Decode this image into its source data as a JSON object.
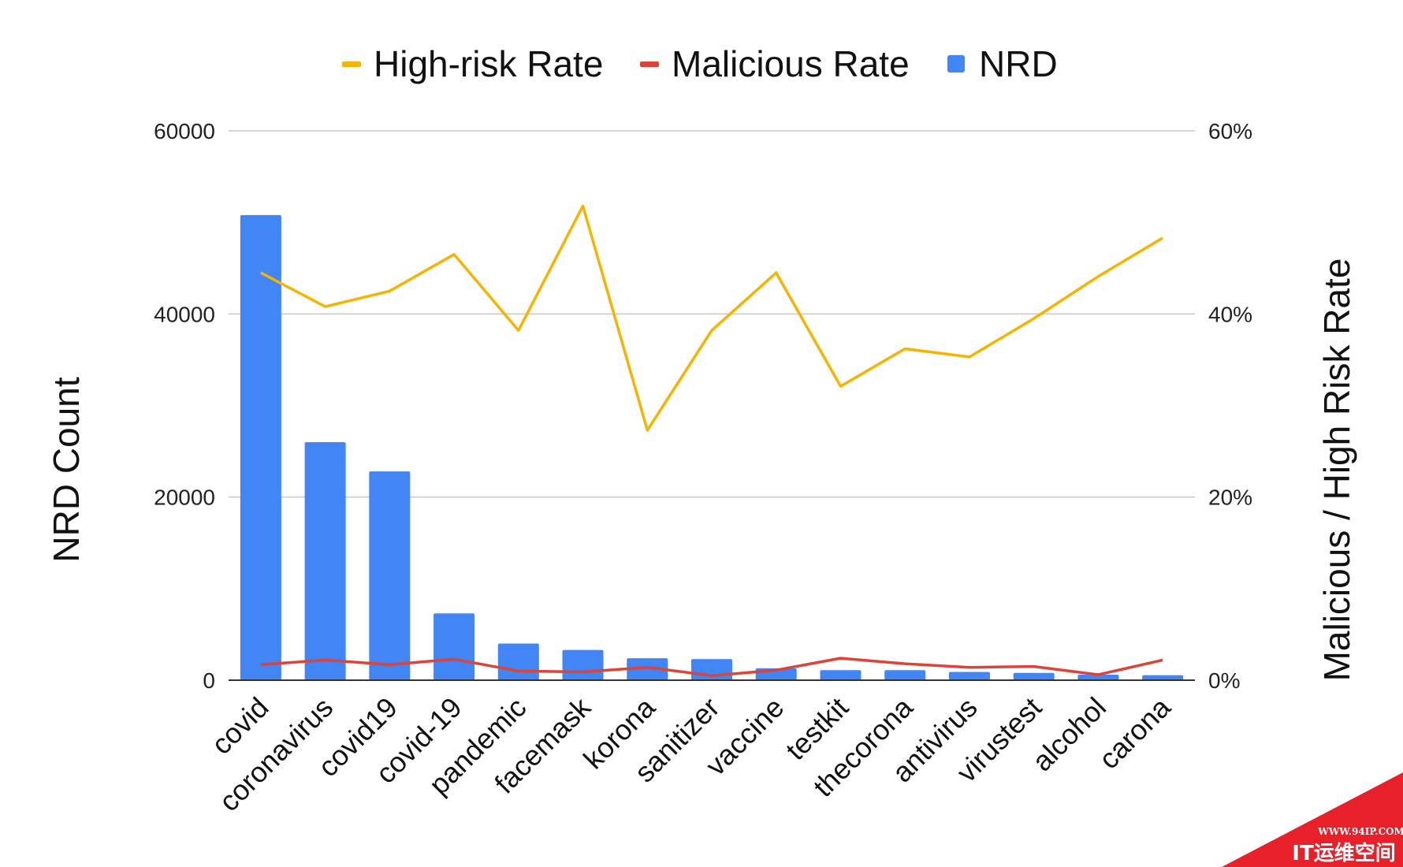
{
  "chart_data": {
    "type": "bar",
    "categories": [
      "covid",
      "coronavirus",
      "covid19",
      "covid-19",
      "pandemic",
      "facemask",
      "korona",
      "sanitizer",
      "vaccine",
      "testkit",
      "thecorona",
      "antivirus",
      "virustest",
      "alcohol",
      "carona"
    ],
    "series": [
      {
        "name": "NRD",
        "type": "bar",
        "axis": "left",
        "color": "#4285F4",
        "values": [
          50800,
          26000,
          22800,
          7300,
          4000,
          3300,
          2400,
          2300,
          1300,
          1100,
          1100,
          900,
          800,
          600,
          550
        ]
      },
      {
        "name": "High-risk Rate",
        "type": "line",
        "axis": "right",
        "color": "#F4B400",
        "values": [
          44.5,
          40.8,
          42.5,
          46.5,
          38.2,
          51.8,
          27.3,
          38.2,
          44.5,
          32.1,
          36.2,
          35.3,
          39.5,
          44.1,
          48.3
        ]
      },
      {
        "name": "Malicious Rate",
        "type": "line",
        "axis": "right",
        "color": "#DB4437",
        "values": [
          1.7,
          2.2,
          1.7,
          2.3,
          1.0,
          0.9,
          1.4,
          0.5,
          1.1,
          2.4,
          1.8,
          1.4,
          1.5,
          0.6,
          2.2
        ]
      }
    ],
    "ylabel": "NRD Count",
    "ylabel_right": "Malicious / High Risk Rate",
    "ylim": [
      0,
      60000
    ],
    "ylim_right": [
      0,
      60
    ],
    "yticks": [
      "0",
      "20000",
      "40000",
      "60000"
    ],
    "yticks_right": [
      "0%",
      "20%",
      "40%",
      "60%"
    ],
    "legend": [
      "High-risk Rate",
      "Malicious Rate",
      "NRD"
    ],
    "legend_position": "top",
    "grid": true
  },
  "watermark": {
    "url": "WWW.94IP.COM",
    "name": "IT运维空间",
    "color": "#E8202A"
  }
}
